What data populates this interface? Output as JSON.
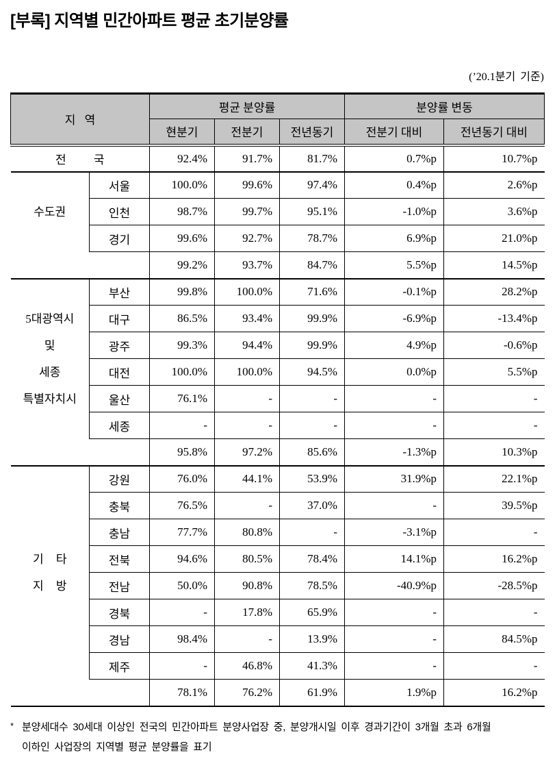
{
  "page": {
    "title": "[부록] 지역별 민간아파트 평균 초기분양률",
    "basis_note": "(’20.1분기 기준)"
  },
  "colors": {
    "header_bg": "#c5c5c5",
    "border": "#000000",
    "text": "#000000"
  },
  "table": {
    "header": {
      "region": "지 역",
      "avg_group": "평균 분양률",
      "change_group": "분양률 변동",
      "sub_cols": [
        "현분기",
        "전분기",
        "전년동기",
        "전분기 대비",
        "전년동기 대비"
      ]
    },
    "total": {
      "label": "전 국",
      "values": [
        "92.4%",
        "91.7%",
        "81.7%",
        "0.7%p",
        "10.7%p"
      ]
    },
    "groups": [
      {
        "label_lines": [
          "수도권"
        ],
        "rows": [
          {
            "label": "서울",
            "values": [
              "100.0%",
              "99.6%",
              "97.4%",
              "0.4%p",
              "2.6%p"
            ]
          },
          {
            "label": "인천",
            "values": [
              "98.7%",
              "99.7%",
              "95.1%",
              "-1.0%p",
              "3.6%p"
            ]
          },
          {
            "label": "경기",
            "values": [
              "99.6%",
              "92.7%",
              "78.7%",
              "6.9%p",
              "21.0%p"
            ]
          }
        ],
        "subtotal": [
          "99.2%",
          "93.7%",
          "84.7%",
          "5.5%p",
          "14.5%p"
        ]
      },
      {
        "label_lines": [
          "5대광역시",
          "및",
          "세종",
          "특별자치시"
        ],
        "rows": [
          {
            "label": "부산",
            "values": [
              "99.8%",
              "100.0%",
              "71.6%",
              "-0.1%p",
              "28.2%p"
            ]
          },
          {
            "label": "대구",
            "values": [
              "86.5%",
              "93.4%",
              "99.9%",
              "-6.9%p",
              "-13.4%p"
            ]
          },
          {
            "label": "광주",
            "values": [
              "99.3%",
              "94.4%",
              "99.9%",
              "4.9%p",
              "-0.6%p"
            ]
          },
          {
            "label": "대전",
            "values": [
              "100.0%",
              "100.0%",
              "94.5%",
              "0.0%p",
              "5.5%p"
            ]
          },
          {
            "label": "울산",
            "values": [
              "76.1%",
              "-",
              "-",
              "-",
              "-"
            ]
          },
          {
            "label": "세종",
            "values": [
              "-",
              "-",
              "-",
              "-",
              "-"
            ]
          }
        ],
        "subtotal": [
          "95.8%",
          "97.2%",
          "85.6%",
          "-1.3%p",
          "10.3%p"
        ]
      },
      {
        "label_lines": [
          "기 타",
          "지 방"
        ],
        "rows": [
          {
            "label": "강원",
            "values": [
              "76.0%",
              "44.1%",
              "53.9%",
              "31.9%p",
              "22.1%p"
            ]
          },
          {
            "label": "충북",
            "values": [
              "76.5%",
              "-",
              "37.0%",
              "-",
              "39.5%p"
            ]
          },
          {
            "label": "충남",
            "values": [
              "77.7%",
              "80.8%",
              "-",
              "-3.1%p",
              "-"
            ]
          },
          {
            "label": "전북",
            "values": [
              "94.6%",
              "80.5%",
              "78.4%",
              "14.1%p",
              "16.2%p"
            ]
          },
          {
            "label": "전남",
            "values": [
              "50.0%",
              "90.8%",
              "78.5%",
              "-40.9%p",
              "-28.5%p"
            ]
          },
          {
            "label": "경북",
            "values": [
              "-",
              "17.8%",
              "65.9%",
              "-",
              "-"
            ]
          },
          {
            "label": "경남",
            "values": [
              "98.4%",
              "-",
              "13.9%",
              "-",
              "84.5%p"
            ]
          },
          {
            "label": "제주",
            "values": [
              "-",
              "46.8%",
              "41.3%",
              "-",
              "-"
            ]
          }
        ],
        "subtotal": [
          "78.1%",
          "76.2%",
          "61.9%",
          "1.9%p",
          "16.2%p"
        ]
      }
    ]
  },
  "footnote": {
    "marker": "*",
    "line1": "분양세대수 30세대 이상인 전국의 민간아파트 분양사업장 중, 분양개시일 이후 경과기간이 3개월 초과 6개월",
    "line2": "이하인 사업장의 지역별 평균 분양률을 표기"
  }
}
